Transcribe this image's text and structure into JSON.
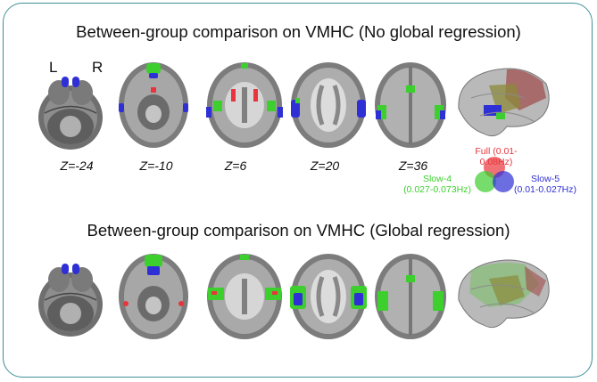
{
  "titles": {
    "top": "Between-group comparison on VMHC (No global regression)",
    "bottom": "Between-group comparison on VMHC (Global regression)"
  },
  "hemisphere_labels": {
    "left": "L",
    "right": "R"
  },
  "z_labels": [
    "Z=-24",
    "Z=-10",
    "Z=6",
    "Z=20",
    "Z=36"
  ],
  "legend": {
    "full": {
      "label": "Full (0.01-0.08Hz)",
      "color": "#e8343a"
    },
    "slow4": {
      "name": "Slow-4",
      "range": "(0.027-0.073Hz)",
      "color": "#3ccf2e"
    },
    "slow5": {
      "name": "Slow-5",
      "range": "(0.01-0.027Hz)",
      "color": "#2f2fd6"
    }
  },
  "colors": {
    "frame": "#3f8f9a",
    "brain_gray": "#8c8c8c",
    "brain_light": "#c9c9c9"
  }
}
